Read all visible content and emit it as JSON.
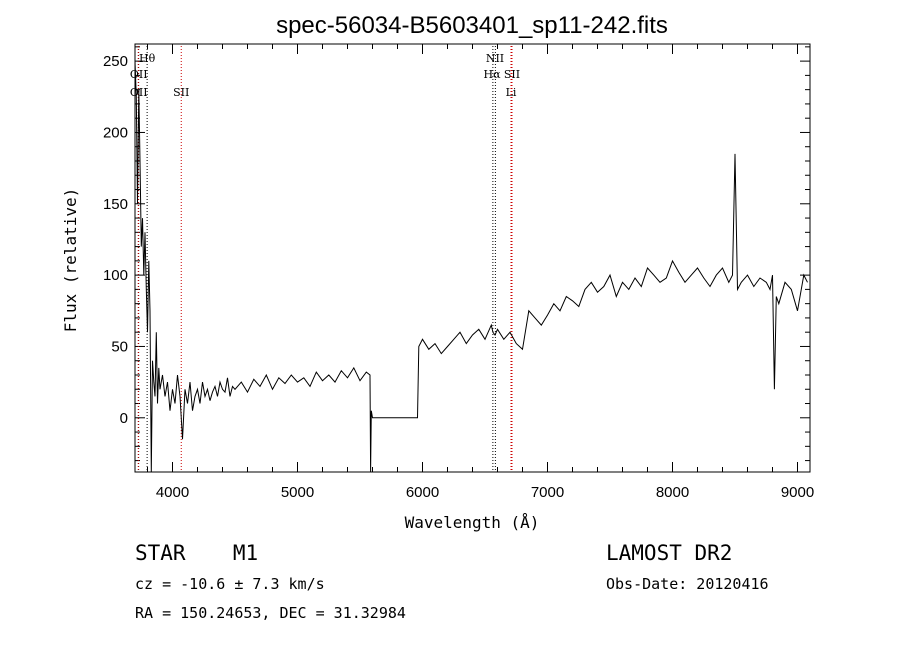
{
  "chart_data": {
    "type": "line",
    "title": "spec-56034-B5603401_sp11-242.fits",
    "xlabel": "Wavelength (Å)",
    "ylabel": "Flux (relative)",
    "xlim": [
      3700,
      9100
    ],
    "ylim": [
      -38,
      262
    ],
    "xticks": [
      4000,
      5000,
      6000,
      7000,
      8000,
      9000
    ],
    "yticks": [
      0,
      50,
      100,
      150,
      200,
      250
    ],
    "grid": false,
    "series": [
      {
        "x": [
          3700,
          3710,
          3720,
          3730,
          3740,
          3750,
          3760,
          3770,
          3780,
          3790,
          3800,
          3810,
          3820,
          3830,
          3840,
          3850,
          3860,
          3870,
          3880,
          3890,
          3900,
          3920,
          3940,
          3960,
          3980,
          4000,
          4020,
          4040,
          4060,
          4080,
          4100,
          4120,
          4140,
          4160,
          4180,
          4200,
          4220,
          4240,
          4260,
          4280,
          4300,
          4320,
          4340,
          4360,
          4380,
          4400,
          4420,
          4440,
          4460,
          4480,
          4500,
          4550,
          4600,
          4650,
          4700,
          4750,
          4800,
          4850,
          4900,
          4950,
          5000,
          5050,
          5100,
          5150,
          5200,
          5250,
          5300,
          5350,
          5400,
          5450,
          5500,
          5550,
          5580,
          5585,
          5590,
          5600,
          5950,
          5960,
          5970,
          6000,
          6050,
          6100,
          6150,
          6200,
          6250,
          6300,
          6350,
          6400,
          6450,
          6500,
          6550,
          6563,
          6580,
          6600,
          6650,
          6700,
          6750,
          6800,
          6850,
          6900,
          6950,
          7000,
          7050,
          7100,
          7150,
          7200,
          7250,
          7300,
          7350,
          7400,
          7450,
          7500,
          7550,
          7600,
          7650,
          7700,
          7750,
          7800,
          7850,
          7900,
          7950,
          8000,
          8050,
          8100,
          8150,
          8200,
          8250,
          8300,
          8350,
          8400,
          8450,
          8480,
          8500,
          8520,
          8550,
          8600,
          8650,
          8700,
          8750,
          8780,
          8800,
          8815,
          8830,
          8850,
          8900,
          8950,
          9000,
          9050,
          9080
        ],
        "y": [
          250,
          225,
          150,
          230,
          180,
          120,
          140,
          100,
          130,
          90,
          60,
          110,
          75,
          -38,
          40,
          25,
          15,
          60,
          10,
          35,
          20,
          30,
          15,
          25,
          5,
          20,
          10,
          30,
          15,
          -15,
          20,
          10,
          25,
          5,
          15,
          20,
          10,
          25,
          15,
          20,
          12,
          18,
          22,
          15,
          25,
          20,
          18,
          28,
          15,
          22,
          20,
          25,
          18,
          27,
          22,
          30,
          20,
          28,
          24,
          30,
          25,
          28,
          22,
          32,
          26,
          30,
          25,
          33,
          28,
          35,
          26,
          32,
          30,
          -40,
          5,
          0,
          0,
          0,
          50,
          55,
          48,
          52,
          45,
          50,
          55,
          60,
          52,
          58,
          62,
          55,
          65,
          60,
          58,
          62,
          55,
          60,
          52,
          48,
          75,
          70,
          65,
          72,
          80,
          75,
          85,
          82,
          78,
          90,
          95,
          88,
          92,
          100,
          85,
          95,
          90,
          98,
          92,
          105,
          100,
          95,
          98,
          110,
          102,
          95,
          100,
          105,
          98,
          92,
          100,
          105,
          95,
          100,
          185,
          90,
          95,
          100,
          92,
          98,
          95,
          90,
          100,
          20,
          85,
          80,
          95,
          90,
          75,
          100,
          95
        ]
      }
    ],
    "lines_red": [
      {
        "label": "SII",
        "x": 4070
      },
      {
        "label": "Li",
        "x": 6708
      },
      {
        "label": "",
        "x": 3727
      },
      {
        "label": "",
        "x": 6716
      }
    ],
    "lines_black": [
      {
        "label": "Hθ",
        "x": 3797
      },
      {
        "label": "OII",
        "x": 3727
      },
      {
        "label": "OII",
        "x": 3729
      },
      {
        "label": "NII",
        "x": 6583
      },
      {
        "label": "Hα",
        "x": 6563
      },
      {
        "label": "SII",
        "x": 6716
      }
    ]
  },
  "info": {
    "class": "STAR",
    "subclass": "M1",
    "survey": "LAMOST DR2",
    "cz": "cz = -10.6 ± 7.3 km/s",
    "obs_date": "Obs-Date: 20120416",
    "coords": "RA = 150.24653, DEC =  31.32984"
  },
  "colors": {
    "red_line": "#cc0000",
    "black_line": "#000000"
  }
}
